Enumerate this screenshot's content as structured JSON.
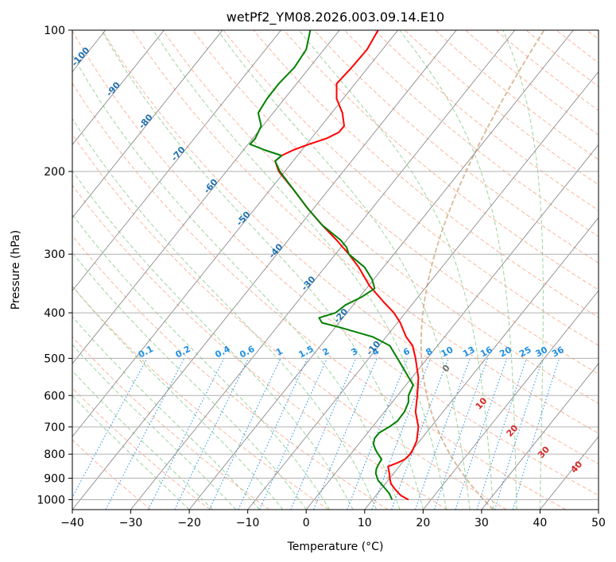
{
  "chart_data": {
    "type": "line",
    "title": "wetPf2_YM08.2026.003.09.14.E10",
    "xlabel": "Temperature (°C)",
    "ylabel": "Pressure (hPa)",
    "xlim": [
      -40,
      50
    ],
    "ylim": [
      1050,
      100
    ],
    "y_scale": "log",
    "x_ticks": [
      -40,
      -30,
      -20,
      -10,
      0,
      10,
      20,
      30,
      40,
      50
    ],
    "x_tick_labels": [
      "−40",
      "−30",
      "−20",
      "−10",
      "0",
      "10",
      "20",
      "30",
      "40",
      "50"
    ],
    "y_ticks": [
      1000,
      900,
      800,
      700,
      600,
      500,
      400,
      300,
      200,
      100
    ],
    "y_tick_labels": [
      "1000",
      "900",
      "800",
      "700",
      "600",
      "500",
      "400",
      "300",
      "200",
      "100"
    ],
    "grid": true,
    "colors": {
      "temperature": "#ff0000",
      "dewpoint": "#008000",
      "isotherm": "#8c8c8c",
      "dry_adiabat": "#fdb59a",
      "moist_adiabat": "#9dd49d",
      "mixing_ratio": "#1f8fe5",
      "isotherm_label": "#1f6fb0",
      "dry_label": "#d62728",
      "special": "#d8b896"
    },
    "series": [
      {
        "key": "temperature",
        "values": [
          {
            "p": 1000,
            "t": 17.5
          },
          {
            "p": 980,
            "t": 16.2
          },
          {
            "p": 950,
            "t": 15.2
          },
          {
            "p": 925,
            "t": 14.5
          },
          {
            "p": 900,
            "t": 14.3
          },
          {
            "p": 875,
            "t": 14.2
          },
          {
            "p": 850,
            "t": 14.0
          },
          {
            "p": 835,
            "t": 15.6
          },
          {
            "p": 820,
            "t": 16.9
          },
          {
            "p": 800,
            "t": 17.8
          },
          {
            "p": 780,
            "t": 18.3
          },
          {
            "p": 750,
            "t": 18.9
          },
          {
            "p": 700,
            "t": 19.2
          },
          {
            "p": 650,
            "t": 18.7
          },
          {
            "p": 600,
            "t": 19.0
          },
          {
            "p": 550,
            "t": 19.2
          },
          {
            "p": 500,
            "t": 18.7
          },
          {
            "p": 470,
            "t": 18.2
          },
          {
            "p": 450,
            "t": 17.1
          },
          {
            "p": 420,
            "t": 16.1
          },
          {
            "p": 400,
            "t": 15.0
          },
          {
            "p": 380,
            "t": 13.3
          },
          {
            "p": 350,
            "t": 10.8
          },
          {
            "p": 320,
            "t": 9.0
          },
          {
            "p": 300,
            "t": 7.3
          },
          {
            "p": 280,
            "t": 5.2
          },
          {
            "p": 260,
            "t": 2.7
          },
          {
            "p": 240,
            "t": 0.3
          },
          {
            "p": 220,
            "t": -2.0
          },
          {
            "p": 200,
            "t": -4.7
          },
          {
            "p": 190,
            "t": -5.3
          },
          {
            "p": 185,
            "t": -4.2
          },
          {
            "p": 180,
            "t": -2.2
          },
          {
            "p": 175,
            "t": 0.5
          },
          {
            "p": 170,
            "t": 3.5
          },
          {
            "p": 165,
            "t": 5.6
          },
          {
            "p": 160,
            "t": 6.5
          },
          {
            "p": 150,
            "t": 6.2
          },
          {
            "p": 140,
            "t": 5.2
          },
          {
            "p": 130,
            "t": 5.2
          },
          {
            "p": 120,
            "t": 7.8
          },
          {
            "p": 110,
            "t": 10.4
          },
          {
            "p": 100,
            "t": 12.3
          }
        ]
      },
      {
        "key": "dewpoint",
        "values": [
          {
            "p": 1000,
            "t": 14.7
          },
          {
            "p": 970,
            "t": 14.2
          },
          {
            "p": 940,
            "t": 13.3
          },
          {
            "p": 910,
            "t": 12.3
          },
          {
            "p": 880,
            "t": 11.9
          },
          {
            "p": 860,
            "t": 12.0
          },
          {
            "p": 840,
            "t": 12.4
          },
          {
            "p": 820,
            "t": 12.9
          },
          {
            "p": 800,
            "t": 12.3
          },
          {
            "p": 780,
            "t": 11.8
          },
          {
            "p": 760,
            "t": 11.5
          },
          {
            "p": 740,
            "t": 11.7
          },
          {
            "p": 720,
            "t": 12.5
          },
          {
            "p": 700,
            "t": 14.2
          },
          {
            "p": 680,
            "t": 15.6
          },
          {
            "p": 650,
            "t": 16.8
          },
          {
            "p": 620,
            "t": 17.5
          },
          {
            "p": 600,
            "t": 17.5
          },
          {
            "p": 570,
            "t": 18.3
          },
          {
            "p": 540,
            "t": 17.2
          },
          {
            "p": 500,
            "t": 15.6
          },
          {
            "p": 470,
            "t": 14.3
          },
          {
            "p": 450,
            "t": 11.4
          },
          {
            "p": 430,
            "t": 5.9
          },
          {
            "p": 420,
            "t": 2.7
          },
          {
            "p": 410,
            "t": 2.2
          },
          {
            "p": 400,
            "t": 5.0
          },
          {
            "p": 385,
            "t": 6.7
          },
          {
            "p": 370,
            "t": 9.5
          },
          {
            "p": 355,
            "t": 11.7
          },
          {
            "p": 340,
            "t": 11.3
          },
          {
            "p": 320,
            "t": 10.0
          },
          {
            "p": 300,
            "t": 7.3
          },
          {
            "p": 290,
            "t": 6.9
          },
          {
            "p": 280,
            "t": 5.9
          },
          {
            "p": 260,
            "t": 2.7
          },
          {
            "p": 240,
            "t": 0.3
          },
          {
            "p": 220,
            "t": -2.0
          },
          {
            "p": 200,
            "t": -4.5
          },
          {
            "p": 190,
            "t": -5.3
          },
          {
            "p": 185,
            "t": -4.2
          },
          {
            "p": 180,
            "t": -7.1
          },
          {
            "p": 175,
            "t": -9.6
          },
          {
            "p": 170,
            "t": -8.7
          },
          {
            "p": 160,
            "t": -7.7
          },
          {
            "p": 150,
            "t": -8.2
          },
          {
            "p": 140,
            "t": -6.7
          },
          {
            "p": 130,
            "t": -4.7
          },
          {
            "p": 120,
            "t": -2.0
          },
          {
            "p": 110,
            "t": 0.0
          },
          {
            "p": 100,
            "t": 0.7
          }
        ]
      }
    ],
    "isotherm_labels": [
      "-100",
      "-90",
      "-80",
      "-70",
      "-60",
      "-50",
      "-40",
      "-30",
      "-20",
      "-10"
    ],
    "mixing_ratio_labels": [
      "0.1",
      "0.2",
      "0.4",
      "0.6",
      "1",
      "1.5",
      "2",
      "3",
      "4",
      "6",
      "8",
      "10",
      "13",
      "16",
      "20",
      "25",
      "30",
      "36"
    ],
    "dry_adiabat_labels": [
      "0",
      "10",
      "20",
      "30",
      "40"
    ]
  }
}
